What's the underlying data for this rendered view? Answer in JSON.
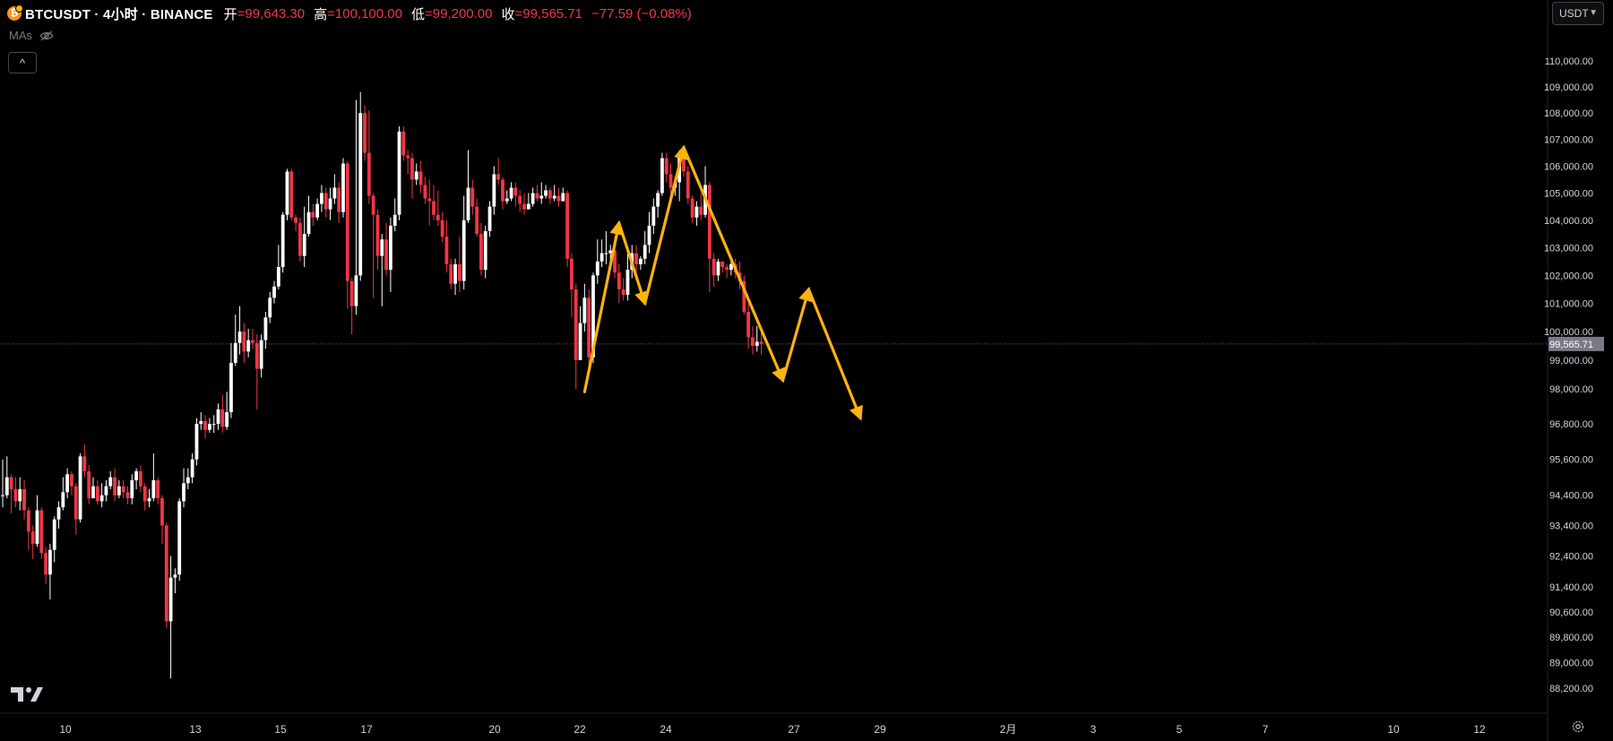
{
  "header": {
    "symbol": "BTCUSDT · 4小时 · BINANCE",
    "logo_letter": "₿",
    "open_label": "开",
    "open_value": "=99,643.30",
    "high_label": "高",
    "high_value": "=100,100.00",
    "low_label": "低",
    "low_value": "=99,200.00",
    "close_label": "收",
    "close_value": "=99,565.71",
    "change": "−77.59 (−0.08%)"
  },
  "indicators_label": "MAs",
  "collapse_icon": "^",
  "currency_selector": {
    "value": "USDT"
  },
  "colors": {
    "background": "#000000",
    "up": "#ffffff",
    "down": "#f23645",
    "annotation": "#ffb30f",
    "axis_text": "#d1d4dc",
    "price_label_bg": "#787b86"
  },
  "icons": [
    "bitcoin-logo-icon",
    "eye-hidden-icon",
    "chevron-up-icon",
    "chevron-down-icon",
    "tradingview-logo-icon",
    "settings-gear-icon"
  ],
  "chart_data": {
    "type": "candlestick",
    "title": "BTCUSDT · 4小时 · BINANCE",
    "x_ticks": [
      "10",
      "13",
      "15",
      "17",
      "20",
      "22",
      "24",
      "27",
      "29",
      "2月",
      "3",
      "5",
      "7",
      "10",
      "12"
    ],
    "y_ticks": [
      {
        "label": "110,000.00",
        "value": 110000
      },
      {
        "label": "109,000.00",
        "value": 109000
      },
      {
        "label": "108,000.00",
        "value": 108000
      },
      {
        "label": "107,000.00",
        "value": 107000
      },
      {
        "label": "106,000.00",
        "value": 106000
      },
      {
        "label": "105,000.00",
        "value": 105000
      },
      {
        "label": "104,000.00",
        "value": 104000
      },
      {
        "label": "103,000.00",
        "value": 103000
      },
      {
        "label": "102,000.00",
        "value": 102000
      },
      {
        "label": "101,000.00",
        "value": 101000
      },
      {
        "label": "100,000.00",
        "value": 100000
      },
      {
        "label": "99,000.00",
        "value": 99000
      },
      {
        "label": "98,000.00",
        "value": 98000
      },
      {
        "label": "96,800.00",
        "value": 96800
      },
      {
        "label": "95,600.00",
        "value": 95600
      },
      {
        "label": "94,400.00",
        "value": 94400
      },
      {
        "label": "93,400.00",
        "value": 93400
      },
      {
        "label": "92,400.00",
        "value": 92400
      },
      {
        "label": "91,400.00",
        "value": 91400
      },
      {
        "label": "90,600.00",
        "value": 90600
      },
      {
        "label": "89,800.00",
        "value": 89800
      },
      {
        "label": "89,000.00",
        "value": 89000
      },
      {
        "label": "88,200.00",
        "value": 88200
      }
    ],
    "last_price": {
      "label": "99,565.71",
      "value": 99565.71
    },
    "scale": "log",
    "candles": [
      [
        94400,
        94400,
        95600,
        94000
      ],
      [
        94400,
        95000,
        95700,
        94300
      ],
      [
        95000,
        94600,
        95100,
        93800
      ],
      [
        94600,
        94200,
        95000,
        94000
      ],
      [
        94200,
        94600,
        95000,
        93900
      ],
      [
        94600,
        93900,
        94900,
        93600
      ],
      [
        93900,
        93200,
        94000,
        92600
      ],
      [
        93200,
        92800,
        93400,
        92300
      ],
      [
        92800,
        93900,
        94400,
        92700
      ],
      [
        93900,
        92500,
        94000,
        92300
      ],
      [
        92500,
        91800,
        92700,
        91500
      ],
      [
        91800,
        92600,
        92800,
        91000
      ],
      [
        92600,
        93600,
        93700,
        92200
      ],
      [
        93600,
        94000,
        94200,
        93300
      ],
      [
        94000,
        94500,
        95000,
        93900
      ],
      [
        94500,
        95100,
        95300,
        94300
      ],
      [
        95100,
        94700,
        95200,
        94400
      ],
      [
        94700,
        93600,
        94800,
        93100
      ],
      [
        93600,
        95700,
        95800,
        93500
      ],
      [
        95700,
        95200,
        96100,
        95000
      ],
      [
        95200,
        94300,
        95400,
        94100
      ],
      [
        94300,
        94700,
        95000,
        94300
      ],
      [
        94700,
        94200,
        94900,
        94100
      ],
      [
        94200,
        94400,
        94800,
        94000
      ],
      [
        94400,
        94700,
        94900,
        94200
      ],
      [
        94700,
        95000,
        95200,
        94600
      ],
      [
        95000,
        94400,
        95300,
        94200
      ],
      [
        94400,
        94700,
        94900,
        94300
      ],
      [
        94700,
        94500,
        94900,
        94300
      ],
      [
        94500,
        94300,
        94700,
        94100
      ],
      [
        94300,
        94900,
        95100,
        94100
      ],
      [
        94900,
        95200,
        95300,
        94600
      ],
      [
        95200,
        94700,
        95400,
        94500
      ],
      [
        94700,
        94200,
        94800,
        93900
      ],
      [
        94200,
        94300,
        94600,
        94000
      ],
      [
        94300,
        94900,
        95800,
        94200
      ],
      [
        94900,
        94300,
        95000,
        94100
      ],
      [
        94300,
        93400,
        94400,
        92800
      ],
      [
        93400,
        90300,
        93500,
        90100
      ],
      [
        90300,
        91700,
        92400,
        88500
      ],
      [
        91700,
        91800,
        92000,
        91200
      ],
      [
        91800,
        94200,
        94300,
        91600
      ],
      [
        94200,
        94800,
        95300,
        94000
      ],
      [
        94800,
        95000,
        95300,
        94600
      ],
      [
        95000,
        95600,
        95800,
        94800
      ],
      [
        95600,
        96800,
        97000,
        95400
      ],
      [
        96800,
        96900,
        97200,
        96600
      ],
      [
        96900,
        96600,
        97100,
        96300
      ],
      [
        96600,
        96800,
        97000,
        96500
      ],
      [
        96800,
        96800,
        97100,
        96500
      ],
      [
        96800,
        97300,
        97500,
        96600
      ],
      [
        97300,
        96700,
        97800,
        96500
      ],
      [
        96700,
        97200,
        97900,
        96600
      ],
      [
        97200,
        98900,
        99600,
        97000
      ],
      [
        98900,
        99600,
        100600,
        98800
      ],
      [
        99600,
        100000,
        100900,
        99200
      ],
      [
        100000,
        99300,
        100300,
        98900
      ],
      [
        99300,
        99700,
        100100,
        99100
      ],
      [
        99700,
        99600,
        100100,
        99400
      ],
      [
        99600,
        98700,
        99900,
        97300
      ],
      [
        98700,
        99700,
        99900,
        98400
      ],
      [
        99700,
        100500,
        100700,
        99400
      ],
      [
        100500,
        101200,
        101400,
        100300
      ],
      [
        101200,
        101600,
        101800,
        101000
      ],
      [
        101600,
        102300,
        103100,
        101500
      ],
      [
        102300,
        104200,
        104300,
        102100
      ],
      [
        104200,
        105800,
        105900,
        104000
      ],
      [
        105800,
        104100,
        105900,
        104000
      ],
      [
        104100,
        103900,
        104200,
        103600
      ],
      [
        103900,
        102700,
        104100,
        102500
      ],
      [
        102700,
        103500,
        104500,
        102300
      ],
      [
        103500,
        104300,
        104900,
        103400
      ],
      [
        104300,
        104100,
        104600,
        103800
      ],
      [
        104100,
        104600,
        104800,
        104000
      ],
      [
        104600,
        105000,
        105300,
        104300
      ],
      [
        105000,
        104400,
        105200,
        104100
      ],
      [
        104400,
        104800,
        105200,
        104000
      ],
      [
        104800,
        105200,
        105700,
        104600
      ],
      [
        105200,
        104300,
        105400,
        103900
      ],
      [
        104300,
        106100,
        106300,
        104100
      ],
      [
        106100,
        101800,
        106200,
        100800
      ],
      [
        101800,
        100900,
        101900,
        99900
      ],
      [
        100900,
        102000,
        108500,
        100600
      ],
      [
        102000,
        108000,
        108800,
        101800
      ],
      [
        108000,
        106500,
        108300,
        106200
      ],
      [
        106500,
        104900,
        108100,
        104600
      ],
      [
        104900,
        104200,
        105000,
        101200
      ],
      [
        104200,
        102700,
        104400,
        102200
      ],
      [
        102700,
        103300,
        103500,
        100900
      ],
      [
        103300,
        102200,
        103900,
        102000
      ],
      [
        102200,
        103800,
        104100,
        101400
      ],
      [
        103800,
        104200,
        104800,
        103600
      ],
      [
        104200,
        107300,
        107500,
        104000
      ],
      [
        107300,
        106400,
        107500,
        106200
      ],
      [
        106400,
        106300,
        106600,
        105700
      ],
      [
        106300,
        105500,
        106500,
        104800
      ],
      [
        105500,
        105800,
        106100,
        105300
      ],
      [
        105800,
        105300,
        106200,
        105000
      ],
      [
        105300,
        104800,
        105600,
        104600
      ],
      [
        104800,
        104700,
        105500,
        103800
      ],
      [
        104700,
        104200,
        105300,
        104000
      ],
      [
        104200,
        104000,
        105100,
        103800
      ],
      [
        104000,
        103400,
        104300,
        103200
      ],
      [
        103400,
        102400,
        104000,
        102100
      ],
      [
        102400,
        101700,
        102600,
        101500
      ],
      [
        101700,
        102400,
        102600,
        101300
      ],
      [
        102400,
        101800,
        103400,
        101400
      ],
      [
        101800,
        104000,
        104900,
        101500
      ],
      [
        104000,
        105200,
        106600,
        103900
      ],
      [
        105200,
        104500,
        105500,
        104200
      ],
      [
        104500,
        103500,
        104800,
        103400
      ],
      [
        103500,
        102200,
        103900,
        102000
      ],
      [
        102200,
        103600,
        103800,
        101900
      ],
      [
        103600,
        104500,
        104700,
        103400
      ],
      [
        104500,
        105700,
        106000,
        104200
      ],
      [
        105700,
        105500,
        106300,
        105300
      ],
      [
        105500,
        104700,
        105600,
        104400
      ],
      [
        104700,
        104800,
        105100,
        104600
      ],
      [
        104800,
        105200,
        105400,
        104700
      ],
      [
        105200,
        104900,
        105400,
        104500
      ],
      [
        104900,
        104600,
        105100,
        104300
      ],
      [
        104600,
        104400,
        105000,
        104200
      ],
      [
        104400,
        104600,
        105000,
        104400
      ],
      [
        104600,
        105000,
        105200,
        104500
      ],
      [
        105000,
        104800,
        105300,
        104700
      ],
      [
        104800,
        104900,
        105400,
        104600
      ],
      [
        104900,
        105100,
        105300,
        104800
      ],
      [
        105100,
        104800,
        105200,
        104600
      ],
      [
        104800,
        104900,
        105300,
        104700
      ],
      [
        104900,
        104700,
        105200,
        104500
      ],
      [
        104700,
        105000,
        105200,
        104700
      ],
      [
        105000,
        102600,
        105100,
        102300
      ],
      [
        102600,
        101500,
        102800,
        100500
      ],
      [
        101500,
        99000,
        101700,
        98000
      ],
      [
        99000,
        100300,
        100900,
        99200
      ],
      [
        100300,
        101200,
        101700,
        100000
      ],
      [
        101200,
        99100,
        101500,
        98600
      ],
      [
        99100,
        102000,
        102100,
        98900
      ],
      [
        102000,
        102500,
        103300,
        101700
      ],
      [
        102500,
        102800,
        103300,
        102300
      ],
      [
        102800,
        102800,
        103600,
        102400
      ],
      [
        102800,
        102900,
        103100,
        102500
      ],
      [
        102900,
        102100,
        103400,
        101900
      ],
      [
        102100,
        101500,
        102400,
        101000
      ],
      [
        101500,
        101300,
        101900,
        101100
      ],
      [
        101300,
        102200,
        102800,
        101100
      ],
      [
        102200,
        102800,
        103100,
        101900
      ],
      [
        102800,
        102400,
        103100,
        102000
      ],
      [
        102400,
        102600,
        102700,
        102200
      ],
      [
        102600,
        103100,
        103600,
        102400
      ],
      [
        103100,
        103800,
        104300,
        102800
      ],
      [
        103800,
        104500,
        104800,
        103500
      ],
      [
        104500,
        105000,
        105100,
        104100
      ],
      [
        105000,
        106300,
        106500,
        104900
      ],
      [
        106300,
        105700,
        106500,
        105400
      ],
      [
        105700,
        105200,
        106100,
        104900
      ],
      [
        105200,
        105400,
        105600,
        104900
      ],
      [
        105400,
        106400,
        106600,
        104700
      ],
      [
        106400,
        105800,
        106500,
        105600
      ],
      [
        105800,
        104800,
        106000,
        104600
      ],
      [
        104800,
        104100,
        104900,
        103900
      ],
      [
        104100,
        104500,
        104700,
        103800
      ],
      [
        104500,
        104200,
        105000,
        104000
      ],
      [
        104200,
        105300,
        106000,
        104100
      ],
      [
        105300,
        102600,
        105400,
        101400
      ],
      [
        102600,
        102000,
        102800,
        101600
      ],
      [
        102000,
        102500,
        102600,
        101800
      ],
      [
        102500,
        102300,
        102500,
        102100
      ],
      [
        102300,
        102200,
        102400,
        101900
      ],
      [
        102200,
        102400,
        102500,
        102000
      ],
      [
        102400,
        102100,
        102600,
        101900
      ],
      [
        102100,
        101800,
        102500,
        101500
      ],
      [
        101800,
        100700,
        102000,
        100600
      ],
      [
        100700,
        99800,
        101000,
        99400
      ],
      [
        99800,
        99500,
        100200,
        99200
      ],
      [
        99500,
        99643.3,
        100200,
        99300
      ],
      [
        99643.3,
        99565.71,
        100100,
        99200
      ]
    ],
    "annotation_path": [
      {
        "date_offset_candles": 0,
        "value": 97900,
        "time_index": 135
      },
      {
        "time_index": 143,
        "value": 103900
      },
      {
        "time_index": 149,
        "value": 101000
      },
      {
        "time_index": 158,
        "value": 106700
      },
      {
        "time_index": 181,
        "value": 98300
      },
      {
        "time_index": 187,
        "value": 101500
      },
      {
        "time_index": 199,
        "value": 97000
      }
    ]
  }
}
